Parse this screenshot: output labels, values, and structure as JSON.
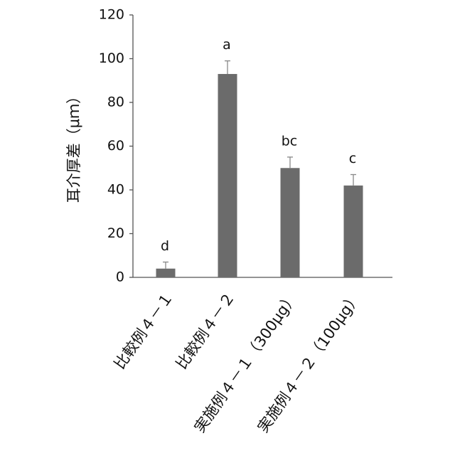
{
  "chart_data": {
    "type": "bar",
    "y_label": "耳介厚差（μｍ）",
    "categories": [
      "比較例４－１",
      "比較例４－２",
      "実施例４－１（300μg）",
      "実施例４－２（100μg）"
    ],
    "values": [
      4,
      93,
      50,
      42
    ],
    "errors": [
      3,
      6,
      5,
      5
    ],
    "annotations": [
      "d",
      "a",
      "bc",
      "c"
    ],
    "color": "#6b6b6b",
    "ylim": [
      0,
      120
    ],
    "yticks": [
      0,
      20,
      40,
      60,
      80,
      100,
      120
    ],
    "grid": false
  }
}
